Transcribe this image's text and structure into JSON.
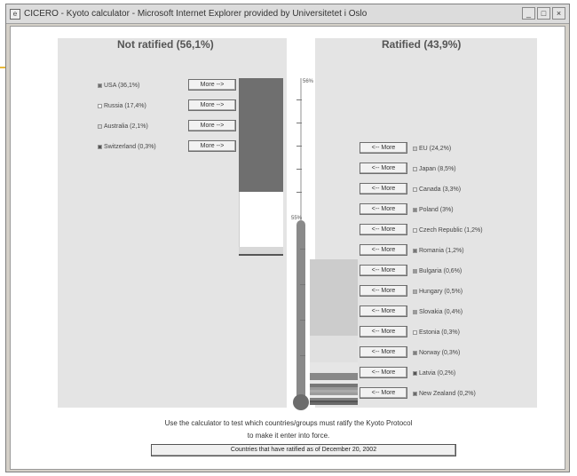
{
  "window": {
    "title": "CICERO - Kyoto calculator - Microsoft Internet Explorer provided by Universitetet i Oslo",
    "controls": [
      "_",
      "□",
      "×"
    ]
  },
  "headings": {
    "not_ratified": "Not ratified (56,1%)",
    "ratified": "Ratified (43,9%)"
  },
  "axis": {
    "top_label": "56%",
    "mid_label": "55%"
  },
  "not_ratified": {
    "items": [
      {
        "label": "USA (36,1%)",
        "button": "More -->",
        "color": "#6f6f6f",
        "share": 36.1
      },
      {
        "label": "Russia (17,4%)",
        "button": "More -->",
        "color": "#ffffff",
        "share": 17.4
      },
      {
        "label": "Australia (2,1%)",
        "button": "More -->",
        "color": "#d8d8d8",
        "share": 2.1
      },
      {
        "label": "Switzerland (0,3%)",
        "button": "More -->",
        "color": "#555555",
        "share": 0.3
      }
    ]
  },
  "ratified": {
    "items": [
      {
        "label": "EU (24,2%)",
        "button": "<-- More",
        "color": "#cccccc",
        "share": 24.2
      },
      {
        "label": "Japan (8,5%)",
        "button": "<-- More",
        "color": "#e0e0e0",
        "share": 8.5
      },
      {
        "label": "Canada (3,3%)",
        "button": "<-- More",
        "color": "#e6e6e6",
        "share": 3.3
      },
      {
        "label": "Poland (3%)",
        "button": "<-- More",
        "color": "#888888",
        "share": 3.0
      },
      {
        "label": "Czech Republic (1,2%)",
        "button": "<-- More",
        "color": "#e8e8e8",
        "share": 1.2
      },
      {
        "label": "Romania (1,2%)",
        "button": "<-- More",
        "color": "#777777",
        "share": 1.2
      },
      {
        "label": "Bulgaria (0,6%)",
        "button": "<-- More",
        "color": "#999999",
        "share": 0.6
      },
      {
        "label": "Hungary (0,5%)",
        "button": "<-- More",
        "color": "#aaaaaa",
        "share": 0.5
      },
      {
        "label": "Slovakia (0,4%)",
        "button": "<-- More",
        "color": "#9c9c9c",
        "share": 0.4
      },
      {
        "label": "Estonia (0,3%)",
        "button": "<-- More",
        "color": "#ececec",
        "share": 0.3
      },
      {
        "label": "Norway (0,3%)",
        "button": "<-- More",
        "color": "#808080",
        "share": 0.3
      },
      {
        "label": "Latvia (0,2%)",
        "button": "<-- More",
        "color": "#555555",
        "share": 0.2
      },
      {
        "label": "New Zealand (0,2%)",
        "button": "<-- More",
        "color": "#6a6a6a",
        "share": 0.2
      }
    ]
  },
  "caption": {
    "line1": "Use the calculator to test which countries/groups must ratify the Kyoto Protocol",
    "line2": "to make it enter into force."
  },
  "bottom_button": "Countries that have ratified as of December 20, 2002"
}
